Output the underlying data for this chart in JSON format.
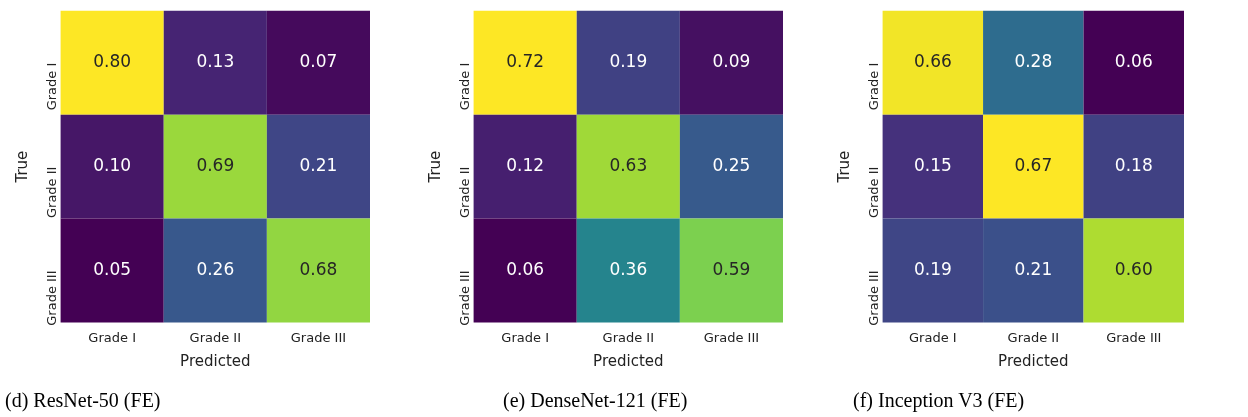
{
  "chart_data": [
    {
      "type": "heatmap",
      "title": "(d) ResNet-50 (FE)",
      "xlabel": "Predicted",
      "ylabel": "True",
      "categories": [
        "Grade I",
        "Grade II",
        "Grade III"
      ],
      "y_categories": [
        "Grade I",
        "Grade II",
        "Grade III"
      ],
      "cells": [
        [
          0.8,
          0.13,
          0.07
        ],
        [
          0.1,
          0.69,
          0.21
        ],
        [
          0.05,
          0.26,
          0.68
        ]
      ],
      "cell_labels": [
        [
          "0.80",
          "0.13",
          "0.07"
        ],
        [
          "0.10",
          "0.69",
          "0.21"
        ],
        [
          "0.05",
          "0.26",
          "0.68"
        ]
      ]
    },
    {
      "type": "heatmap",
      "title": "(e) DenseNet-121 (FE)",
      "xlabel": "Predicted",
      "ylabel": "True",
      "categories": [
        "Grade I",
        "Grade II",
        "Grade III"
      ],
      "y_categories": [
        "Grade I",
        "Grade II",
        "Grade III"
      ],
      "cells": [
        [
          0.72,
          0.19,
          0.09
        ],
        [
          0.12,
          0.63,
          0.25
        ],
        [
          0.06,
          0.36,
          0.59
        ]
      ],
      "cell_labels": [
        [
          "0.72",
          "0.19",
          "0.09"
        ],
        [
          "0.12",
          "0.63",
          "0.25"
        ],
        [
          "0.06",
          "0.36",
          "0.59"
        ]
      ]
    },
    {
      "type": "heatmap",
      "title": "(f) Inception V3 (FE)",
      "xlabel": "Predicted",
      "ylabel": "True",
      "categories": [
        "Grade I",
        "Grade II",
        "Grade III"
      ],
      "y_categories": [
        "Grade I",
        "Grade II",
        "Grade III"
      ],
      "cells": [
        [
          0.66,
          0.28,
          0.06
        ],
        [
          0.15,
          0.67,
          0.18
        ],
        [
          0.19,
          0.21,
          0.6
        ]
      ],
      "cell_labels": [
        [
          "0.66",
          "0.28",
          "0.06"
        ],
        [
          "0.15",
          "0.67",
          "0.18"
        ],
        [
          "0.19",
          "0.21",
          "0.60"
        ]
      ]
    }
  ]
}
